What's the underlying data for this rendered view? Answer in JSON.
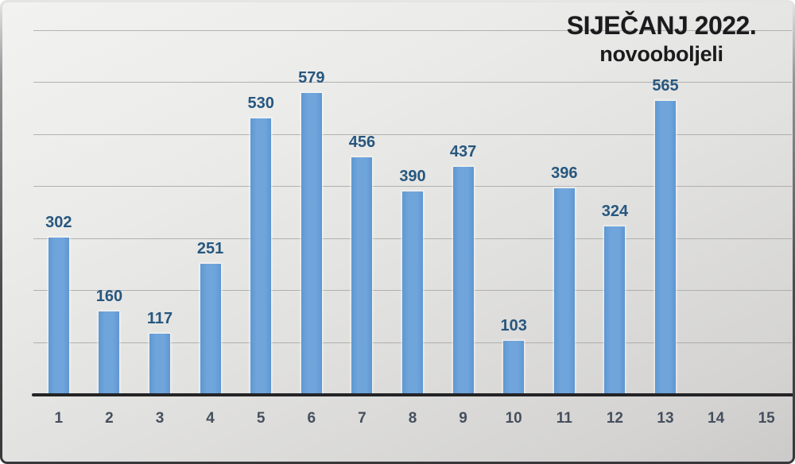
{
  "chart_data": {
    "type": "bar",
    "title": "SIJEČANJ 2022.",
    "subtitle": "novooboljeli",
    "categories": [
      "1",
      "2",
      "3",
      "4",
      "5",
      "6",
      "7",
      "8",
      "9",
      "10",
      "11",
      "12",
      "13",
      "14",
      "15"
    ],
    "values": [
      302,
      160,
      117,
      251,
      530,
      579,
      456,
      390,
      437,
      103,
      396,
      324,
      565,
      null,
      null
    ],
    "data_labels": [
      302,
      160,
      117,
      251,
      530,
      579,
      456,
      390,
      437,
      103,
      396,
      324,
      565
    ],
    "xlabel": "",
    "ylabel": "",
    "ylim": [
      0,
      700
    ],
    "gridline_interval": 100,
    "grid": "horizontal",
    "legend": "none",
    "y_axis_tick_labels_visible": false,
    "colors": {
      "bar_fill": "#6FA5DB",
      "bar_edge": "#5E97D2",
      "data_label": "#27577F",
      "axis_tick_label": "#454F5D",
      "title_text": "#1B1B1D",
      "gridline": "#A2A2A2",
      "axis_line": "#242426"
    }
  }
}
